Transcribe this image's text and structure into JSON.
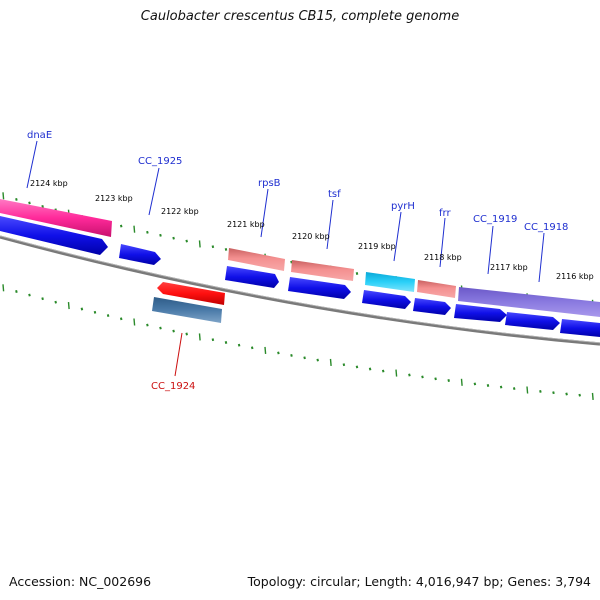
{
  "title": "Caulobacter crescentus CB15, complete genome",
  "footer": {
    "accession": "Accession: NC_002696",
    "summary": "Topology: circular; Length: 4,016,947 bp; Genes: 3,794"
  },
  "colors": {
    "backbone": "#808080",
    "tick": "#2a8a2a",
    "label_top": "#1f2fd0",
    "label_bottom": "#cc1010",
    "cds": "#1010e8",
    "gene_hot_pink": "#ff2a9a",
    "gene_rna": "#f08a8a",
    "gene_cyan": "#22c8f0",
    "gene_purple": "#8a7ae0",
    "gene_red": "#ff1010",
    "gene_steel": "#4a7aa8"
  },
  "kbp_labels": [
    "2124 kbp",
    "2123 kbp",
    "2122 kbp",
    "2121 kbp",
    "2120 kbp",
    "2119 kbp",
    "2118 kbp",
    "2117 kbp",
    "2116 kbp"
  ],
  "genes_top": [
    {
      "name": "dnaE",
      "color": "#1f2fd0"
    },
    {
      "name": "CC_1925",
      "color": "#1f2fd0"
    },
    {
      "name": "rpsB",
      "color": "#1f2fd0"
    },
    {
      "name": "tsf",
      "color": "#1f2fd0"
    },
    {
      "name": "pyrH",
      "color": "#1f2fd0"
    },
    {
      "name": "frr",
      "color": "#1f2fd0"
    },
    {
      "name": "CC_1919",
      "color": "#1f2fd0"
    },
    {
      "name": "CC_1918",
      "color": "#1f2fd0"
    }
  ],
  "genes_bottom": [
    {
      "name": "CC_1924",
      "color": "#cc1010"
    }
  ]
}
